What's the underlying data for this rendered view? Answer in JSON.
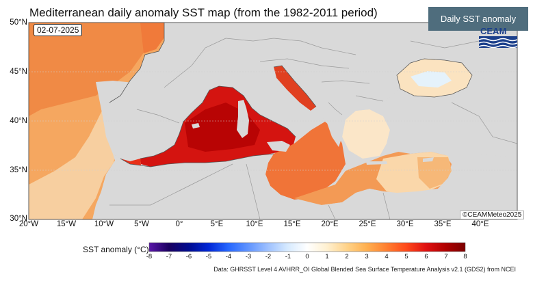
{
  "header": {
    "title": "Mediterranean daily anomaly SST map (from the 1982-2011 period)",
    "tab_label": "Daily SST anomaly"
  },
  "map": {
    "date": "02-07-2025",
    "credit": "©CEAMMeteo2025",
    "logo_text": "CEAM",
    "lat_labels": [
      "50°N",
      "45°N",
      "40°N",
      "35°N",
      "30°N"
    ],
    "lon_labels": [
      "20°W",
      "15°W",
      "10°W",
      "5°W",
      "0°",
      "5°E",
      "10°E",
      "15°E",
      "20°E",
      "25°E",
      "30°E",
      "35°E",
      "40°E"
    ],
    "colors": {
      "land": "#d9d9d9",
      "border": "#9a9a9a",
      "coast": "#555555",
      "grid": "#e6e6e6"
    }
  },
  "legend": {
    "label": "SST anomaly (°C)",
    "ticks": [
      "-8",
      "-7",
      "-6",
      "-5",
      "-4",
      "-3",
      "-2",
      "-1",
      "0",
      "1",
      "2",
      "3",
      "4",
      "5",
      "6",
      "7",
      "8"
    ],
    "colors": [
      "#5a16a8",
      "#1a0060",
      "#000b8f",
      "#0026d6",
      "#2566ff",
      "#5f93ff",
      "#9dc0ff",
      "#d6eaff",
      "#ffffff",
      "#fff0d0",
      "#ffd38a",
      "#ffb050",
      "#ff8030",
      "#ff4a1a",
      "#e01010",
      "#b00000",
      "#7a0000"
    ]
  },
  "footer": {
    "source": "Data: GHRSST Level 4 AVHRR_OI Global Blended Sea Surface Temperature Analysis v2.1 (GDS2) from NCEI"
  }
}
